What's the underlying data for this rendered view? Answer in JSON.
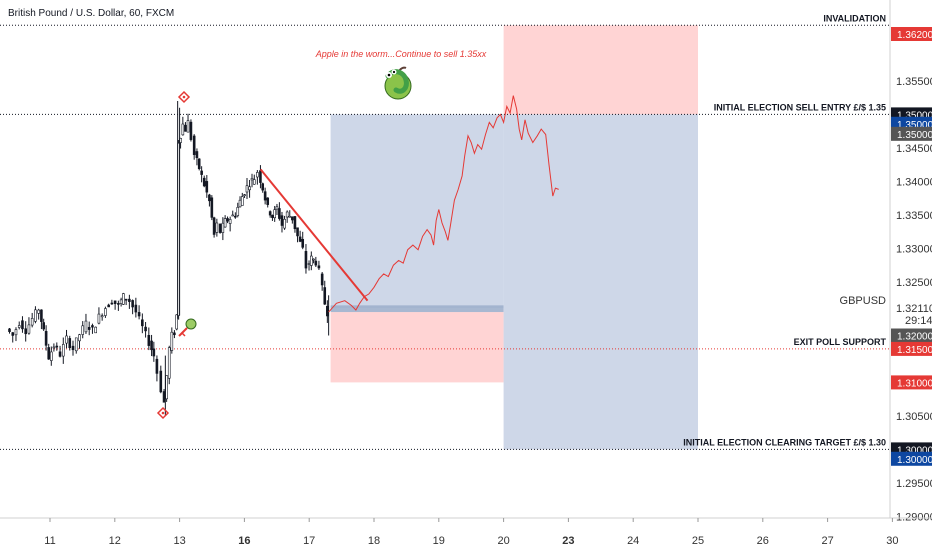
{
  "header": {
    "title": "British Pound / U.S. Dollar, 60, FXCM"
  },
  "chart_data": {
    "type": "line",
    "symbol": "GBPUSD",
    "last_price": "1.32110",
    "countdown": "29:14",
    "ylim": [
      1.2885,
      1.3635
    ],
    "x_ticks": [
      {
        "label": "11",
        "x": 0,
        "bold": false
      },
      {
        "label": "12",
        "x": 1,
        "bold": false
      },
      {
        "label": "13",
        "x": 2,
        "bold": false
      },
      {
        "label": "16",
        "x": 3,
        "bold": true
      },
      {
        "label": "17",
        "x": 4,
        "bold": false
      },
      {
        "label": "18",
        "x": 5,
        "bold": false
      },
      {
        "label": "19",
        "x": 6,
        "bold": false
      },
      {
        "label": "20",
        "x": 7,
        "bold": false
      },
      {
        "label": "23",
        "x": 8,
        "bold": true
      },
      {
        "label": "24",
        "x": 9,
        "bold": false
      },
      {
        "label": "25",
        "x": 10,
        "bold": false
      },
      {
        "label": "26",
        "x": 11,
        "bold": false
      },
      {
        "label": "27",
        "x": 12,
        "bold": false
      },
      {
        "label": "30",
        "x": 13,
        "bold": false
      }
    ],
    "y_ticks": [
      "1.36200",
      "1.35500",
      "1.35000",
      "1.34500",
      "1.34000",
      "1.33500",
      "1.33000",
      "1.32500",
      "1.32110",
      "1.31500",
      "1.31000",
      "1.30500",
      "1.30000",
      "1.29500",
      "1.29000"
    ],
    "y_tick_values": [
      1.362,
      1.355,
      1.35,
      1.345,
      1.34,
      1.335,
      1.33,
      1.325,
      1.3211,
      1.315,
      1.31,
      1.305,
      1.3,
      1.295,
      1.29
    ],
    "price_tags": [
      {
        "value": "1.36200",
        "y": 1.362,
        "color": "#e53935"
      },
      {
        "value": "1.35000",
        "y": 1.35,
        "color": "#131722"
      },
      {
        "value": "1.35000",
        "y": 1.3486,
        "color": "#0d47a1"
      },
      {
        "value": "1.35000",
        "y": 1.3471,
        "color": "#555555"
      },
      {
        "value": "1.32000",
        "y": 1.317,
        "color": "#555555"
      },
      {
        "value": "1.31500",
        "y": 1.315,
        "color": "#e53935"
      },
      {
        "value": "1.31000",
        "y": 1.31,
        "color": "#e53935"
      },
      {
        "value": "1.30000",
        "y": 1.3,
        "color": "#131722"
      },
      {
        "value": "1.30000",
        "y": 1.2986,
        "color": "#0d47a1"
      }
    ],
    "levels": [
      {
        "label": "INVALIDATION",
        "y": 1.3633,
        "style": "dotted",
        "color": "#131722",
        "text_color": "#131722"
      },
      {
        "label": "INITIAL ELECTION SELL ENTRY £/$ 1.35",
        "y": 1.35,
        "style": "dotted",
        "color": "#131722",
        "text_color": "#131722"
      },
      {
        "label": "EXIT POLL SUPPORT",
        "y": 1.315,
        "style": "dotted",
        "color": "#e53935",
        "text_color": "#e53935"
      },
      {
        "label": "INITIAL ELECTION CLEARING TARGET £/$ 1.30",
        "y": 1.3,
        "style": "dotted",
        "color": "#131722",
        "text_color": "#131722"
      }
    ],
    "annotation": "Apple in the worm...Continue to sell 1.35xx",
    "zones": [
      {
        "kind": "target",
        "x0": 4.33,
        "x1": 7.0,
        "y0": 1.3211,
        "y1": 1.35,
        "color": "#c9d3e6"
      },
      {
        "kind": "stop",
        "x0": 4.33,
        "x1": 7.0,
        "y0": 1.31,
        "y1": 1.3205,
        "color": "#ffcfcf"
      },
      {
        "kind": "entry",
        "x0": 4.33,
        "x1": 7.0,
        "y0": 1.3205,
        "y1": 1.3215,
        "color": "#9fb0cc"
      },
      {
        "kind": "stop",
        "x0": 7.0,
        "x1": 10.0,
        "y0": 1.35,
        "y1": 1.3633,
        "color": "#ffcfcf"
      },
      {
        "kind": "target",
        "x0": 7.0,
        "x1": 10.0,
        "y0": 1.3,
        "y1": 1.35,
        "color": "#c9d3e6"
      }
    ],
    "trendline": [
      {
        "x": 3.25,
        "y": 1.3418
      },
      {
        "x": 4.9,
        "y": 1.3222
      }
    ],
    "projection": [
      {
        "x": 4.3,
        "y": 1.3205
      },
      {
        "x": 4.42,
        "y": 1.3218
      },
      {
        "x": 4.55,
        "y": 1.3222
      },
      {
        "x": 4.65,
        "y": 1.3215
      },
      {
        "x": 4.72,
        "y": 1.3208
      },
      {
        "x": 4.78,
        "y": 1.3218
      },
      {
        "x": 4.85,
        "y": 1.3228
      },
      {
        "x": 4.92,
        "y": 1.3232
      },
      {
        "x": 5.0,
        "y": 1.3242
      },
      {
        "x": 5.08,
        "y": 1.3255
      },
      {
        "x": 5.15,
        "y": 1.3262
      },
      {
        "x": 5.22,
        "y": 1.3258
      },
      {
        "x": 5.3,
        "y": 1.3275
      },
      {
        "x": 5.38,
        "y": 1.3282
      },
      {
        "x": 5.45,
        "y": 1.3278
      },
      {
        "x": 5.52,
        "y": 1.3298
      },
      {
        "x": 5.6,
        "y": 1.3305
      },
      {
        "x": 5.68,
        "y": 1.3298
      },
      {
        "x": 5.75,
        "y": 1.3318
      },
      {
        "x": 5.82,
        "y": 1.3328
      },
      {
        "x": 5.88,
        "y": 1.332
      },
      {
        "x": 5.92,
        "y": 1.3305
      },
      {
        "x": 5.96,
        "y": 1.3342
      },
      {
        "x": 6.0,
        "y": 1.3358
      },
      {
        "x": 6.05,
        "y": 1.3338
      },
      {
        "x": 6.1,
        "y": 1.3325
      },
      {
        "x": 6.14,
        "y": 1.3312
      },
      {
        "x": 6.18,
        "y": 1.3335
      },
      {
        "x": 6.24,
        "y": 1.3372
      },
      {
        "x": 6.3,
        "y": 1.3388
      },
      {
        "x": 6.36,
        "y": 1.3408
      },
      {
        "x": 6.4,
        "y": 1.3438
      },
      {
        "x": 6.45,
        "y": 1.3468
      },
      {
        "x": 6.5,
        "y": 1.3458
      },
      {
        "x": 6.55,
        "y": 1.3442
      },
      {
        "x": 6.6,
        "y": 1.3455
      },
      {
        "x": 6.66,
        "y": 1.3448
      },
      {
        "x": 6.72,
        "y": 1.347
      },
      {
        "x": 6.78,
        "y": 1.3488
      },
      {
        "x": 6.84,
        "y": 1.348
      },
      {
        "x": 6.9,
        "y": 1.3495
      },
      {
        "x": 6.95,
        "y": 1.35
      },
      {
        "x": 7.0,
        "y": 1.3488
      },
      {
        "x": 7.05,
        "y": 1.3512
      },
      {
        "x": 7.1,
        "y": 1.3502
      },
      {
        "x": 7.15,
        "y": 1.3528
      },
      {
        "x": 7.2,
        "y": 1.3508
      },
      {
        "x": 7.24,
        "y": 1.3478
      },
      {
        "x": 7.28,
        "y": 1.3462
      },
      {
        "x": 7.33,
        "y": 1.3492
      },
      {
        "x": 7.38,
        "y": 1.3472
      },
      {
        "x": 7.45,
        "y": 1.3458
      },
      {
        "x": 7.52,
        "y": 1.3468
      },
      {
        "x": 7.58,
        "y": 1.3478
      },
      {
        "x": 7.65,
        "y": 1.347
      },
      {
        "x": 7.7,
        "y": 1.3425
      },
      {
        "x": 7.76,
        "y": 1.3378
      },
      {
        "x": 7.8,
        "y": 1.339
      },
      {
        "x": 7.85,
        "y": 1.3388
      }
    ],
    "price_path": [
      {
        "x": -0.65,
        "y": 1.318
      },
      {
        "x": -0.55,
        "y": 1.317
      },
      {
        "x": -0.45,
        "y": 1.319
      },
      {
        "x": -0.35,
        "y": 1.3178
      },
      {
        "x": -0.25,
        "y": 1.3195
      },
      {
        "x": -0.15,
        "y": 1.321
      },
      {
        "x": -0.08,
        "y": 1.3175
      },
      {
        "x": 0.0,
        "y": 1.3138
      },
      {
        "x": 0.08,
        "y": 1.3155
      },
      {
        "x": 0.18,
        "y": 1.3142
      },
      {
        "x": 0.28,
        "y": 1.3165
      },
      {
        "x": 0.38,
        "y": 1.315
      },
      {
        "x": 0.48,
        "y": 1.3172
      },
      {
        "x": 0.58,
        "y": 1.3188
      },
      {
        "x": 0.68,
        "y": 1.3178
      },
      {
        "x": 0.78,
        "y": 1.3198
      },
      {
        "x": 0.88,
        "y": 1.3212
      },
      {
        "x": 0.98,
        "y": 1.3222
      },
      {
        "x": 1.08,
        "y": 1.3215
      },
      {
        "x": 1.15,
        "y": 1.3228
      },
      {
        "x": 1.25,
        "y": 1.3222
      },
      {
        "x": 1.35,
        "y": 1.3205
      },
      {
        "x": 1.45,
        "y": 1.3182
      },
      {
        "x": 1.55,
        "y": 1.316
      },
      {
        "x": 1.62,
        "y": 1.314
      },
      {
        "x": 1.68,
        "y": 1.3115
      },
      {
        "x": 1.74,
        "y": 1.309
      },
      {
        "x": 1.78,
        "y": 1.307
      },
      {
        "x": 1.82,
        "y": 1.311
      },
      {
        "x": 1.86,
        "y": 1.315
      },
      {
        "x": 1.9,
        "y": 1.317
      },
      {
        "x": 1.94,
        "y": 1.3175
      },
      {
        "x": 1.97,
        "y": 1.32
      },
      {
        "x": 2.0,
        "y": 1.346
      },
      {
        "x": 2.03,
        "y": 1.347
      },
      {
        "x": 2.07,
        "y": 1.3485
      },
      {
        "x": 2.11,
        "y": 1.3478
      },
      {
        "x": 2.15,
        "y": 1.3488
      },
      {
        "x": 2.2,
        "y": 1.3465
      },
      {
        "x": 2.25,
        "y": 1.344
      },
      {
        "x": 2.32,
        "y": 1.342
      },
      {
        "x": 2.4,
        "y": 1.3395
      },
      {
        "x": 2.48,
        "y": 1.337
      },
      {
        "x": 2.55,
        "y": 1.332
      },
      {
        "x": 2.6,
        "y": 1.3335
      },
      {
        "x": 2.65,
        "y": 1.3325
      },
      {
        "x": 2.72,
        "y": 1.334
      },
      {
        "x": 2.8,
        "y": 1.3345
      },
      {
        "x": 2.88,
        "y": 1.3352
      },
      {
        "x": 2.95,
        "y": 1.337
      },
      {
        "x": 3.02,
        "y": 1.3385
      },
      {
        "x": 3.1,
        "y": 1.3398
      },
      {
        "x": 3.17,
        "y": 1.3405
      },
      {
        "x": 3.23,
        "y": 1.3415
      },
      {
        "x": 3.3,
        "y": 1.339
      },
      {
        "x": 3.38,
        "y": 1.336
      },
      {
        "x": 3.45,
        "y": 1.3348
      },
      {
        "x": 3.52,
        "y": 1.336
      },
      {
        "x": 3.6,
        "y": 1.3335
      },
      {
        "x": 3.68,
        "y": 1.3352
      },
      {
        "x": 3.76,
        "y": 1.3345
      },
      {
        "x": 3.84,
        "y": 1.3318
      },
      {
        "x": 3.92,
        "y": 1.3298
      },
      {
        "x": 3.98,
        "y": 1.3272
      },
      {
        "x": 4.05,
        "y": 1.3285
      },
      {
        "x": 4.12,
        "y": 1.328
      },
      {
        "x": 4.18,
        "y": 1.3265
      },
      {
        "x": 4.22,
        "y": 1.324
      },
      {
        "x": 4.26,
        "y": 1.3218
      },
      {
        "x": 4.3,
        "y": 1.3205
      }
    ]
  }
}
